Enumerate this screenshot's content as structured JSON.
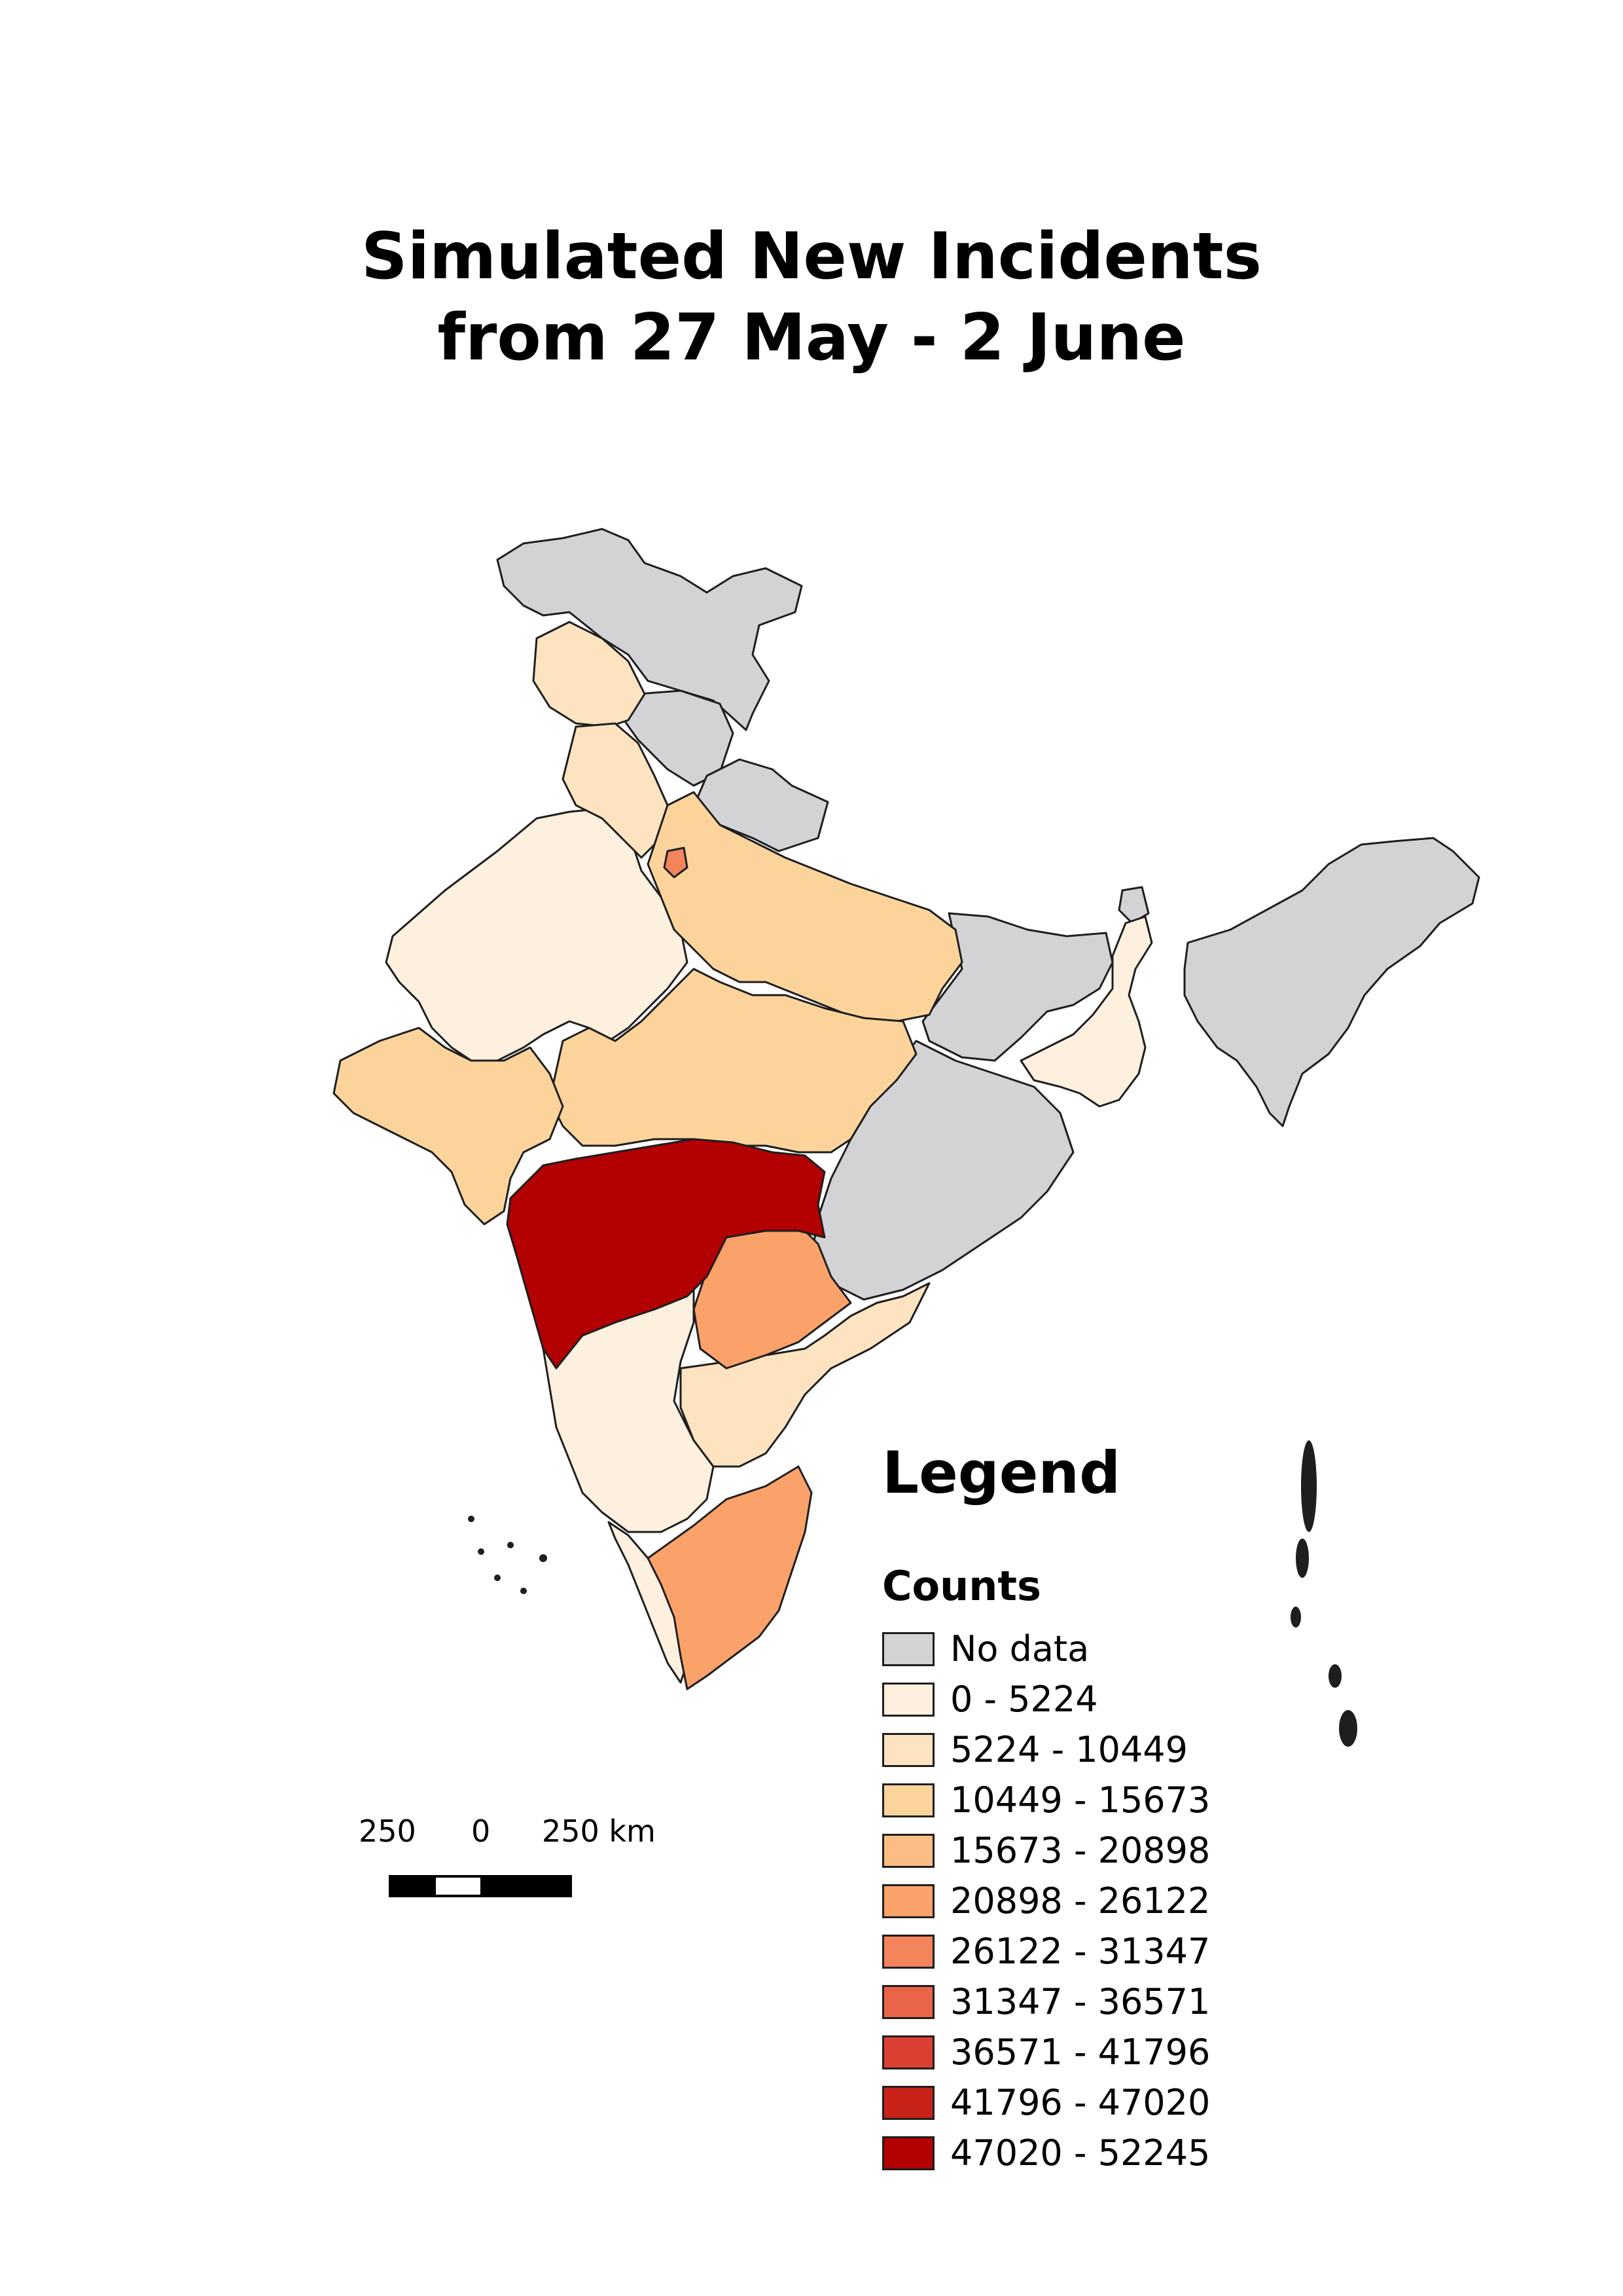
{
  "title": {
    "line1": "Simulated New Incidents",
    "line2": "from 27 May - 2 June"
  },
  "legend": {
    "heading": "Legend",
    "subheading": "Counts",
    "items": [
      {
        "label": "No data",
        "color": "#d3d2d4"
      },
      {
        "label": "0 - 5224",
        "color": "#fef0de"
      },
      {
        "label": "5224 - 10449",
        "color": "#fde3c0"
      },
      {
        "label": "10449 - 15673",
        "color": "#fcd49b"
      },
      {
        "label": "15673 - 20898",
        "color": "#fcbd84"
      },
      {
        "label": "20898 - 26122",
        "color": "#fba26a"
      },
      {
        "label": "26122 - 31347",
        "color": "#f4845b"
      },
      {
        "label": "31347 - 36571",
        "color": "#ea6448"
      },
      {
        "label": "36571 - 41796",
        "color": "#dc4032"
      },
      {
        "label": "41796 - 47020",
        "color": "#c92319"
      },
      {
        "label": "47020 - 52245",
        "color": "#b20003"
      }
    ]
  },
  "scale_bar": {
    "left_label": "250",
    "middle_label": "0",
    "right_label": "250 km"
  },
  "regions": {
    "no_data_color": "#d3d2d4",
    "class_0_5224": "#fef0de",
    "class_5224_10449": "#fde3c0",
    "class_10449_15673": "#fcd49b",
    "class_20898_26122": "#fba26a",
    "class_26122_31347": "#f4845b",
    "class_47020_52245": "#b20003"
  }
}
